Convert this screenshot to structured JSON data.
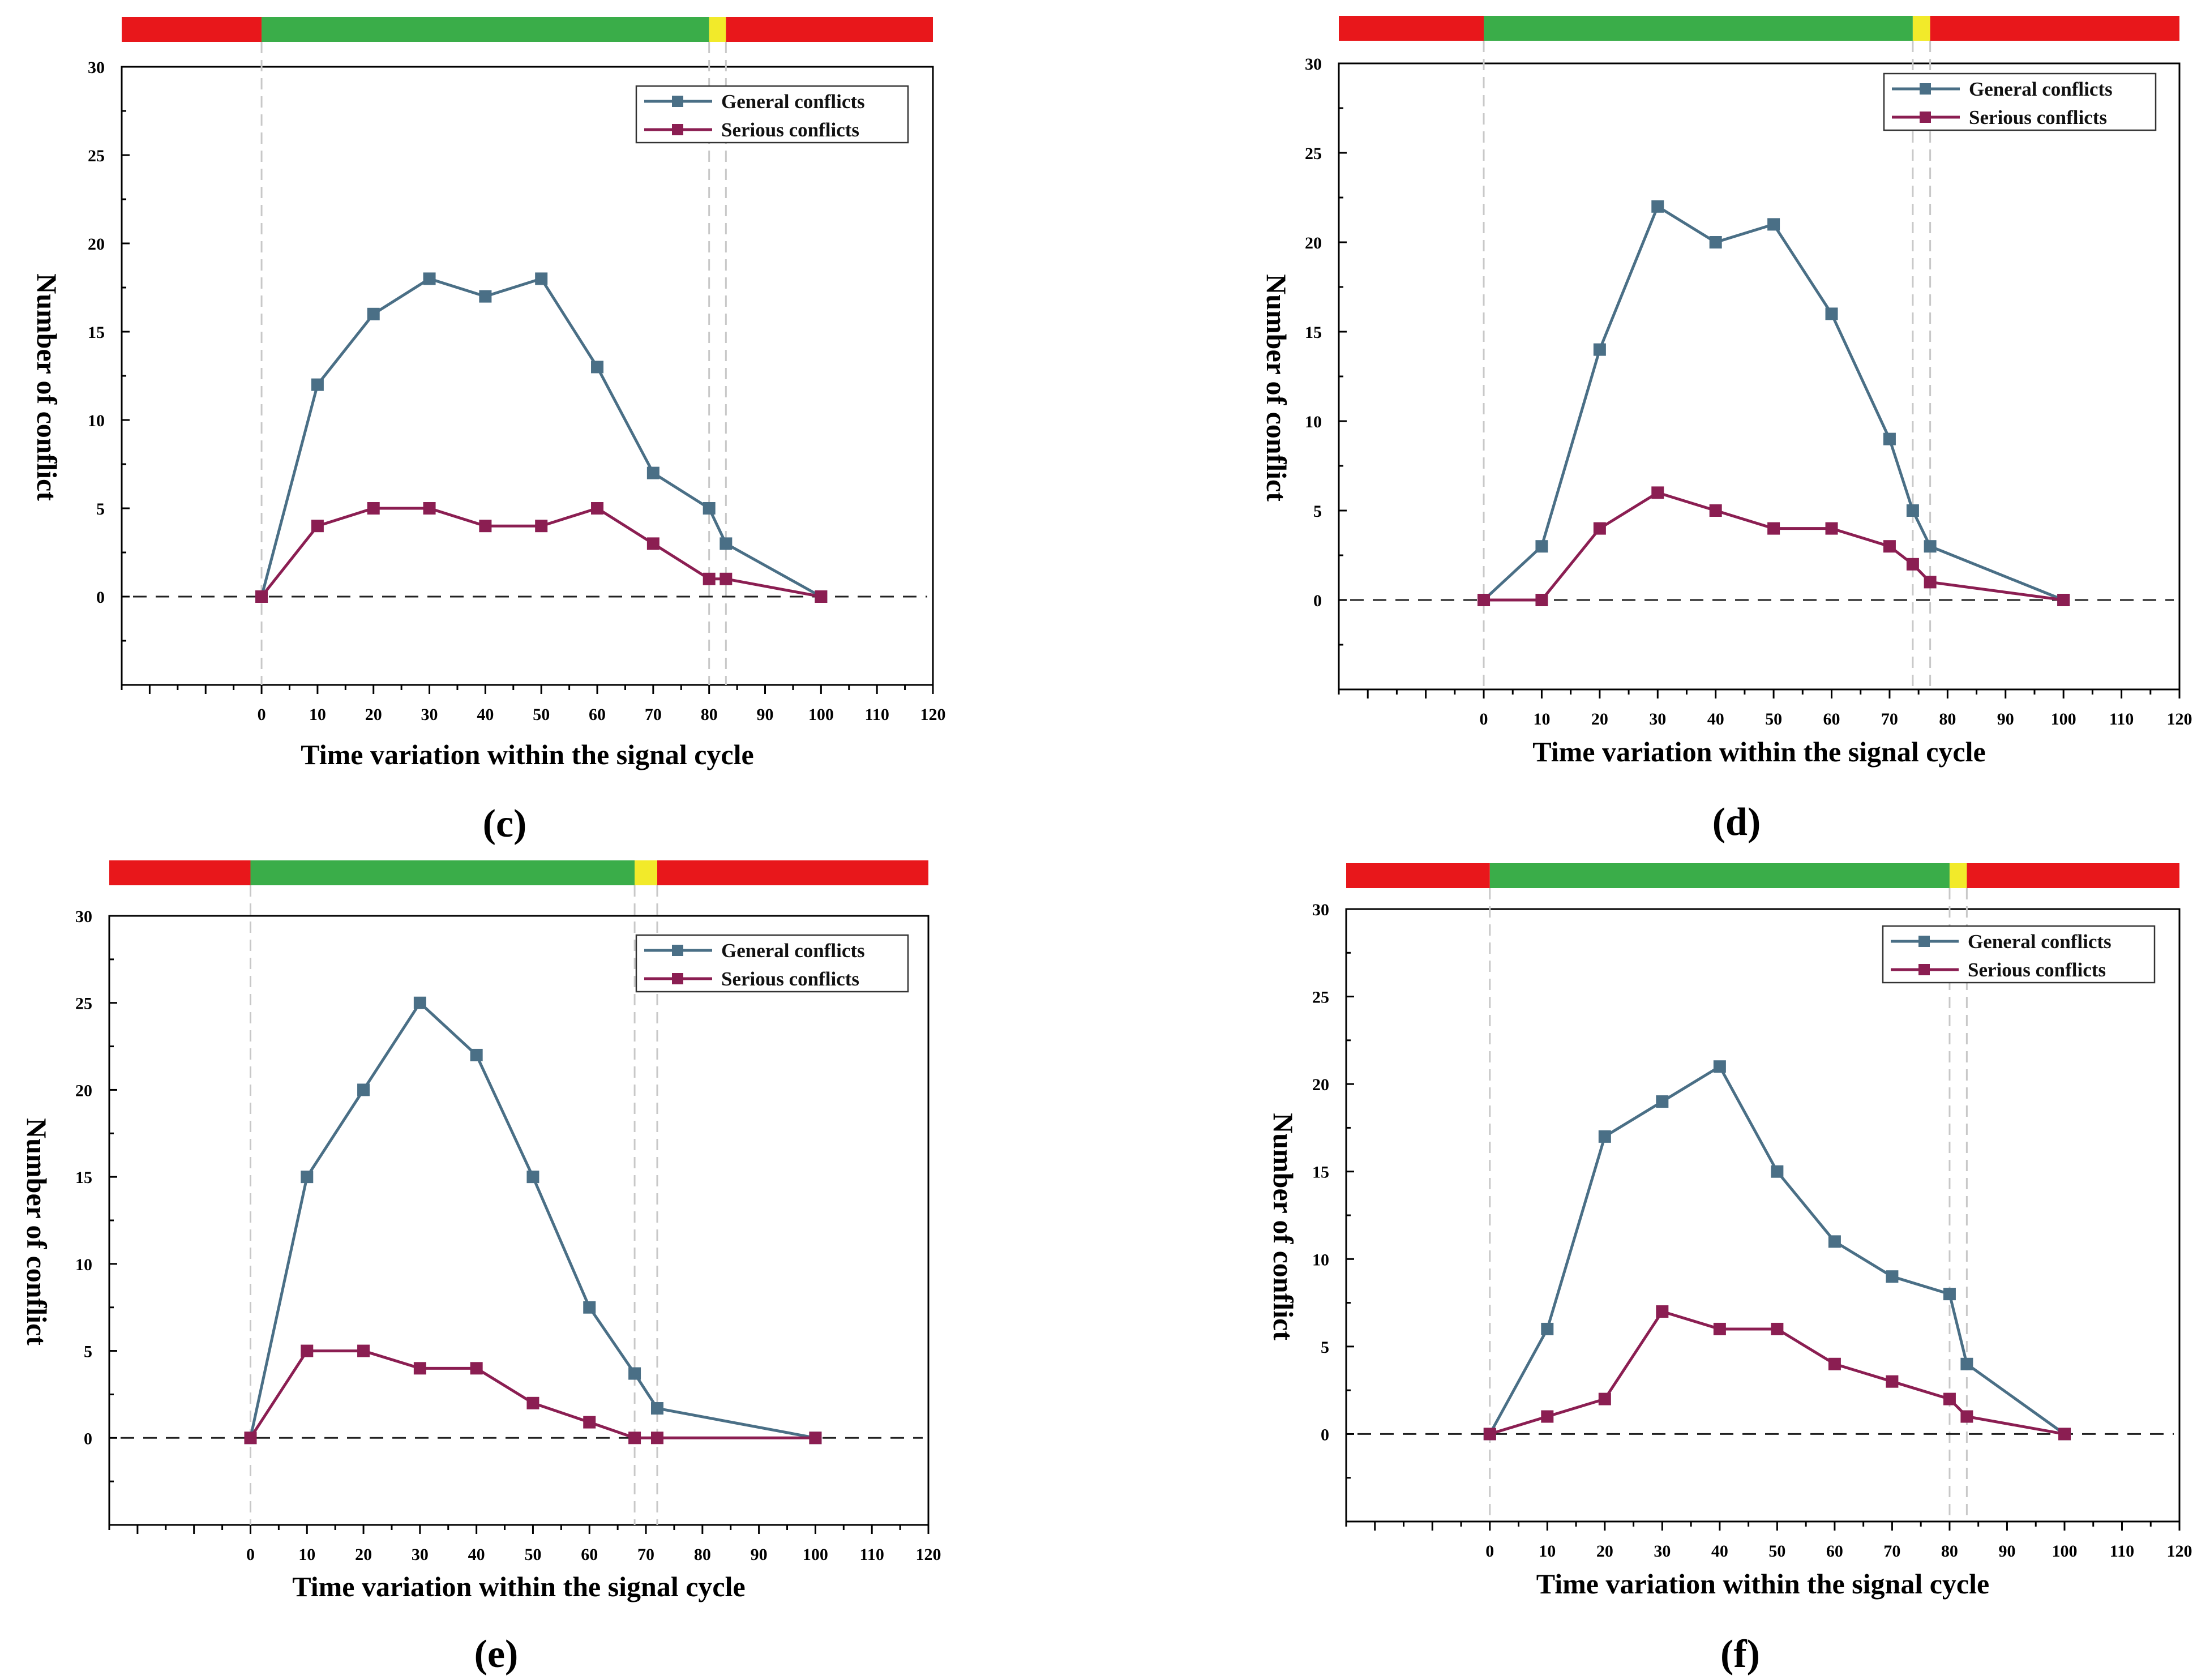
{
  "colors": {
    "general": "#4a6f86",
    "serious": "#8b1e52",
    "phase_red": "#e8171b",
    "phase_green": "#3aad49",
    "phase_yellow": "#f2ea2a",
    "vline": "#c8c8c8"
  },
  "chart_data": [
    {
      "type": "line",
      "panel_label": "c",
      "xlabel": "Time variation within the signal cycle",
      "ylabel": "Number of conflict",
      "xlim": [
        -25,
        120
      ],
      "ylim": [
        -5,
        30
      ],
      "x_ticks": [
        0,
        10,
        20,
        30,
        40,
        50,
        60,
        70,
        80,
        90,
        100,
        110,
        120
      ],
      "y_ticks": [
        0,
        5,
        10,
        15,
        20,
        25,
        30
      ],
      "signal_phases": [
        {
          "color": "red",
          "start": -25,
          "end": 0
        },
        {
          "color": "green",
          "start": 0,
          "end": 80
        },
        {
          "color": "yellow",
          "start": 80,
          "end": 83
        },
        {
          "color": "red",
          "start": 83,
          "end": 120
        }
      ],
      "vertical_markers": [
        0,
        80,
        83
      ],
      "legend": [
        "General conflicts",
        "Serious  conflicts"
      ],
      "series": [
        {
          "name": "General conflicts",
          "x": [
            0,
            10,
            20,
            30,
            40,
            50,
            60,
            70,
            80,
            83,
            100
          ],
          "values": [
            0,
            12,
            16,
            18,
            17,
            18,
            13,
            7,
            5,
            3,
            0
          ]
        },
        {
          "name": "Serious  conflicts",
          "x": [
            0,
            10,
            20,
            30,
            40,
            50,
            60,
            70,
            80,
            83,
            100
          ],
          "values": [
            0,
            4,
            5,
            5,
            4,
            4,
            5,
            3,
            1,
            1,
            0
          ]
        }
      ]
    },
    {
      "type": "line",
      "panel_label": "d",
      "xlabel": "Time variation within the signal cycle",
      "ylabel": "Number of conflict",
      "xlim": [
        -25,
        120
      ],
      "ylim": [
        -5,
        30
      ],
      "x_ticks": [
        0,
        10,
        20,
        30,
        40,
        50,
        60,
        70,
        80,
        90,
        100,
        110,
        120
      ],
      "y_ticks": [
        0,
        5,
        10,
        15,
        20,
        25,
        30
      ],
      "signal_phases": [
        {
          "color": "red",
          "start": -25,
          "end": 0
        },
        {
          "color": "green",
          "start": 0,
          "end": 74
        },
        {
          "color": "yellow",
          "start": 74,
          "end": 77
        },
        {
          "color": "red",
          "start": 77,
          "end": 120
        }
      ],
      "vertical_markers": [
        0,
        74,
        77
      ],
      "legend": [
        "General conflicts",
        "Serious  conflicts"
      ],
      "series": [
        {
          "name": "General conflicts",
          "x": [
            0,
            10,
            20,
            30,
            40,
            50,
            60,
            70,
            74,
            77,
            100
          ],
          "values": [
            0,
            3,
            14,
            22,
            20,
            21,
            16,
            9,
            5,
            3,
            0
          ]
        },
        {
          "name": "Serious  conflicts",
          "x": [
            0,
            10,
            20,
            30,
            40,
            50,
            60,
            70,
            74,
            77,
            100
          ],
          "values": [
            0,
            0,
            4,
            6,
            5,
            4,
            4,
            3,
            2,
            1,
            0
          ]
        }
      ]
    },
    {
      "type": "line",
      "panel_label": "e",
      "xlabel": "Time variation within the signal cycle",
      "ylabel": "Number of conflict",
      "xlim": [
        -25,
        120
      ],
      "ylim": [
        -5,
        30
      ],
      "x_ticks": [
        0,
        10,
        20,
        30,
        40,
        50,
        60,
        70,
        80,
        90,
        100,
        110,
        120
      ],
      "y_ticks": [
        0,
        5,
        10,
        15,
        20,
        25,
        30
      ],
      "signal_phases": [
        {
          "color": "red",
          "start": -25,
          "end": 0
        },
        {
          "color": "green",
          "start": 0,
          "end": 68
        },
        {
          "color": "yellow",
          "start": 68,
          "end": 72
        },
        {
          "color": "red",
          "start": 72,
          "end": 120
        }
      ],
      "vertical_markers": [
        0,
        68,
        72
      ],
      "legend": [
        "General conflicts",
        "Serious  conflicts"
      ],
      "series": [
        {
          "name": "General conflicts",
          "x": [
            0,
            10,
            20,
            30,
            40,
            50,
            60,
            68,
            72,
            100
          ],
          "values": [
            0,
            15,
            20,
            25,
            22,
            15,
            7.5,
            3.7,
            1.7,
            0
          ]
        },
        {
          "name": "Serious  conflicts",
          "x": [
            0,
            10,
            20,
            30,
            40,
            50,
            60,
            68,
            72,
            100
          ],
          "values": [
            0,
            5,
            5,
            4,
            4,
            2,
            0.9,
            0,
            0,
            0
          ]
        }
      ]
    },
    {
      "type": "line",
      "panel_label": "f",
      "xlabel": "Time variation within the signal cycle",
      "ylabel": "Number of conflict",
      "xlim": [
        -25,
        120
      ],
      "ylim": [
        -5,
        30
      ],
      "x_ticks": [
        0,
        10,
        20,
        30,
        40,
        50,
        60,
        70,
        80,
        90,
        100,
        110,
        120
      ],
      "y_ticks": [
        0,
        5,
        10,
        15,
        20,
        25,
        30
      ],
      "signal_phases": [
        {
          "color": "red",
          "start": -25,
          "end": 0
        },
        {
          "color": "green",
          "start": 0,
          "end": 80
        },
        {
          "color": "yellow",
          "start": 80,
          "end": 83
        },
        {
          "color": "red",
          "start": 83,
          "end": 120
        }
      ],
      "vertical_markers": [
        0,
        80,
        83
      ],
      "legend": [
        "General conflicts",
        "Serious  conflicts"
      ],
      "series": [
        {
          "name": "General conflicts",
          "x": [
            0,
            10,
            20,
            30,
            40,
            50,
            60,
            70,
            80,
            83,
            100
          ],
          "values": [
            0,
            6,
            17,
            19,
            21,
            15,
            11,
            9,
            8,
            4,
            0
          ]
        },
        {
          "name": "Serious  conflicts",
          "x": [
            0,
            10,
            20,
            30,
            40,
            50,
            60,
            70,
            80,
            83,
            100
          ],
          "values": [
            0,
            1,
            2,
            7,
            6,
            6,
            4,
            3,
            2,
            1,
            0
          ]
        }
      ]
    }
  ]
}
